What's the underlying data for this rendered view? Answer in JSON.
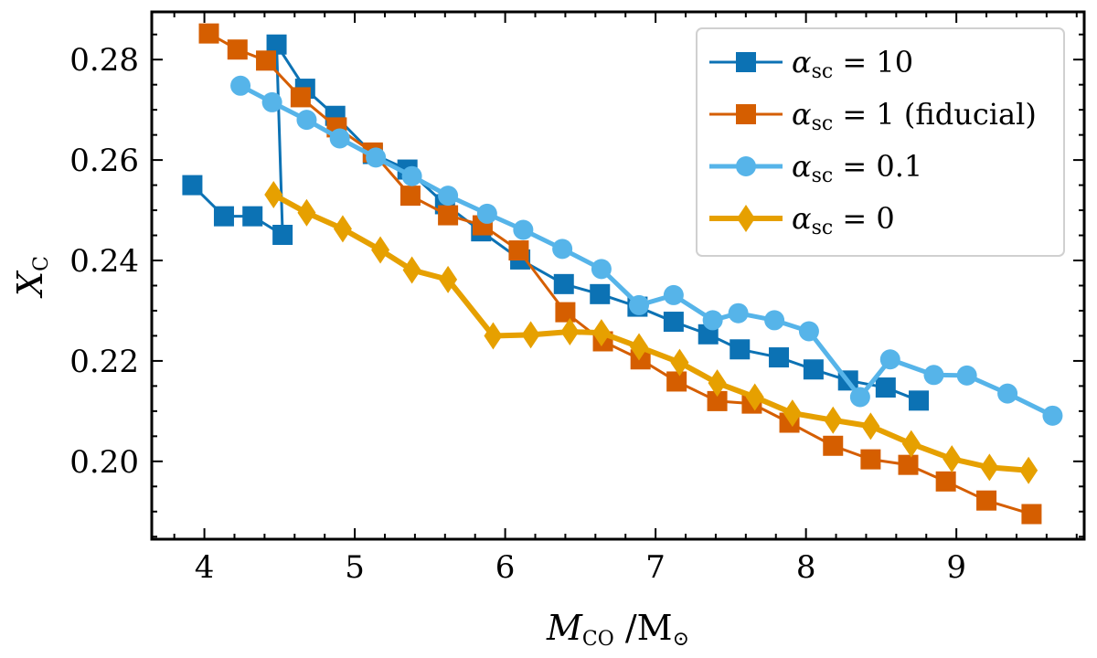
{
  "chart_data": {
    "type": "line",
    "xlabel": {
      "main": "M",
      "sub": "CO",
      "suffix": " /M",
      "sun": "⊙"
    },
    "ylabel": {
      "main": "X",
      "sub": "C"
    },
    "xlim": [
      3.65,
      9.85
    ],
    "ylim": [
      0.1845,
      0.2895
    ],
    "xticks": [
      4,
      5,
      6,
      7,
      8,
      9
    ],
    "xtick_labels": [
      "4",
      "5",
      "6",
      "7",
      "8",
      "9"
    ],
    "yticks": [
      0.2,
      0.22,
      0.24,
      0.26,
      0.28
    ],
    "ytick_labels": [
      "0.20",
      "0.22",
      "0.24",
      "0.26",
      "0.28"
    ],
    "legend_position": "top-right",
    "grid": false,
    "series": [
      {
        "name": "α_sc = 10",
        "label_symbol": "α",
        "label_sub": "sc",
        "label_rest": " = 10",
        "color": "#0C72B4",
        "marker": "square",
        "x": [
          3.92,
          4.13,
          4.32,
          4.52,
          4.48,
          4.67,
          4.87,
          5.12,
          5.35,
          5.6,
          5.84,
          6.1,
          6.39,
          6.63,
          6.88,
          7.12,
          7.35,
          7.56,
          7.82,
          8.05,
          8.28,
          8.53,
          8.75
        ],
        "y": [
          0.255,
          0.2488,
          0.2488,
          0.2451,
          0.283,
          0.2742,
          0.2688,
          0.2612,
          0.2581,
          0.2512,
          0.2458,
          0.2402,
          0.2353,
          0.2333,
          0.2308,
          0.2278,
          0.2253,
          0.2223,
          0.2207,
          0.2183,
          0.2161,
          0.2147,
          0.2121
        ]
      },
      {
        "name": "α_sc = 1 (fiducial)",
        "label_symbol": "α",
        "label_sub": "sc",
        "label_rest": " = 1 (fiducial)",
        "color": "#D55E00",
        "marker": "square",
        "x": [
          4.03,
          4.22,
          4.41,
          4.64,
          4.88,
          5.12,
          5.37,
          5.62,
          5.85,
          6.09,
          6.4,
          6.65,
          6.9,
          7.14,
          7.41,
          7.64,
          7.89,
          8.18,
          8.43,
          8.68,
          8.93,
          9.2,
          9.5
        ],
        "y": [
          0.2852,
          0.282,
          0.2798,
          0.2725,
          0.2665,
          0.2615,
          0.2529,
          0.249,
          0.247,
          0.242,
          0.2297,
          0.2239,
          0.2203,
          0.2159,
          0.212,
          0.2115,
          0.2077,
          0.2031,
          0.2004,
          0.1993,
          0.196,
          0.1922,
          0.1895
        ]
      },
      {
        "name": "α_sc = 0.1",
        "label_symbol": "α",
        "label_sub": "sc",
        "label_rest": " = 0.1",
        "color": "#56B4E9",
        "marker": "circle",
        "x": [
          4.24,
          4.45,
          4.68,
          4.9,
          5.14,
          5.38,
          5.62,
          5.88,
          6.12,
          6.38,
          6.64,
          6.89,
          7.12,
          7.38,
          7.55,
          7.79,
          8.02,
          8.36,
          8.56,
          8.85,
          9.07,
          9.34,
          9.64
        ],
        "y": [
          0.2748,
          0.2715,
          0.268,
          0.2643,
          0.2605,
          0.2568,
          0.2529,
          0.2493,
          0.2461,
          0.2423,
          0.2383,
          0.2311,
          0.2331,
          0.2281,
          0.2295,
          0.2281,
          0.2259,
          0.2128,
          0.2203,
          0.2172,
          0.2171,
          0.2135,
          0.2091
        ]
      },
      {
        "name": "α_sc = 0",
        "label_symbol": "α",
        "label_sub": "sc",
        "label_rest": " = 0",
        "color": "#E6A000",
        "marker": "diamond",
        "x": [
          4.46,
          4.68,
          4.92,
          5.17,
          5.38,
          5.62,
          5.92,
          6.17,
          6.43,
          6.64,
          6.89,
          7.16,
          7.41,
          7.66,
          7.91,
          8.18,
          8.43,
          8.7,
          8.97,
          9.22,
          9.48
        ],
        "y": [
          0.2531,
          0.2495,
          0.2463,
          0.2421,
          0.2381,
          0.2362,
          0.225,
          0.2252,
          0.2258,
          0.2256,
          0.2228,
          0.2197,
          0.2156,
          0.2128,
          0.2096,
          0.2082,
          0.207,
          0.2035,
          0.2005,
          0.1988,
          0.1982
        ]
      }
    ]
  }
}
